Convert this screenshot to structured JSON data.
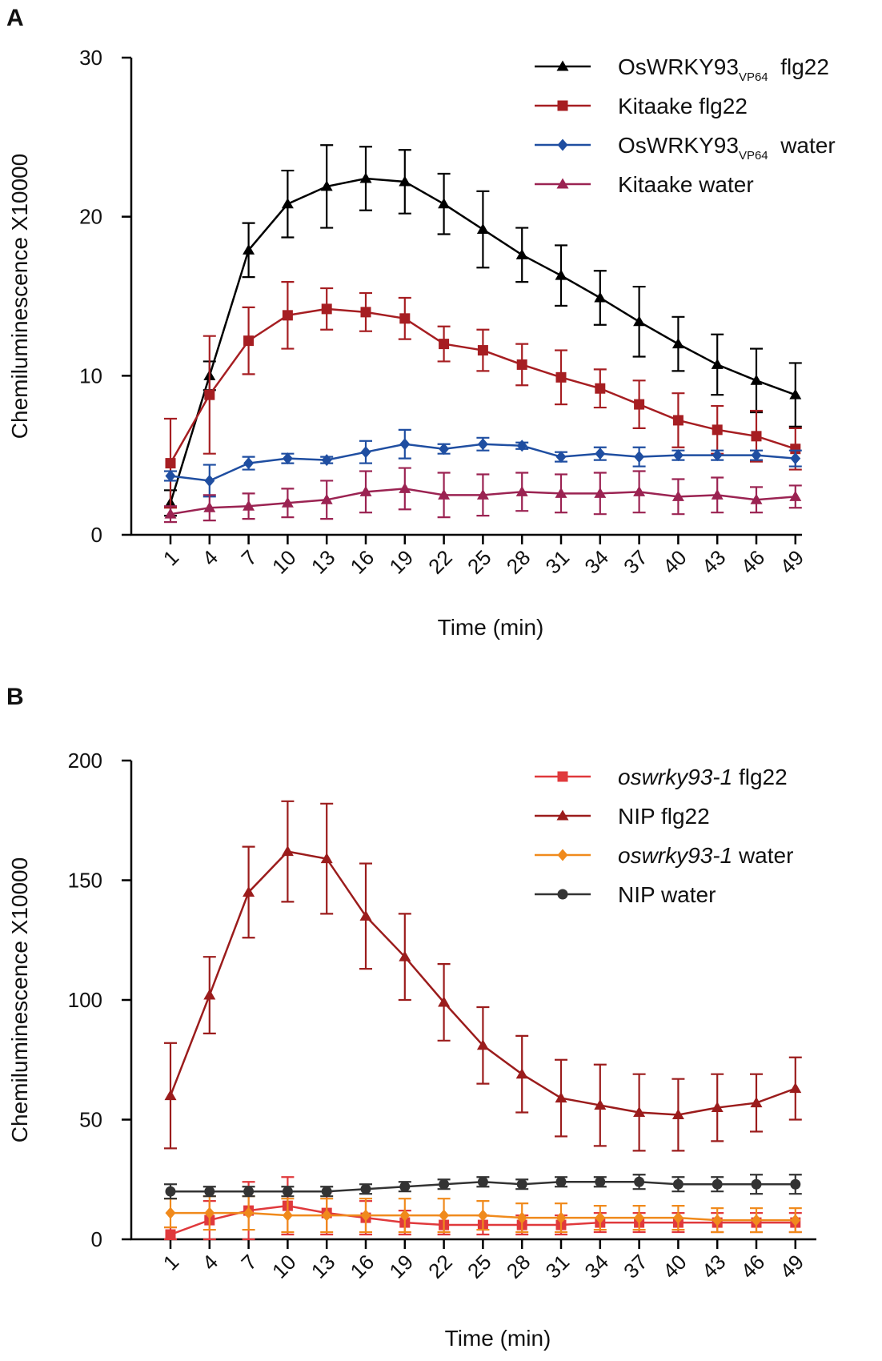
{
  "chart_data": [
    {
      "panel": "A",
      "type": "line",
      "xlabel": "Time (min)",
      "ylabel": "Chemiluminescence X10000",
      "ylim": [
        0,
        30
      ],
      "yticks": [
        0,
        10,
        20,
        30
      ],
      "x": [
        1,
        4,
        7,
        10,
        13,
        16,
        19,
        22,
        25,
        28,
        31,
        34,
        37,
        40,
        43,
        46,
        49
      ],
      "legend_position": "top-right",
      "series": [
        {
          "name": "OsWRKY93",
          "name_subscript": "VP64",
          "name_suffix": "flg22",
          "color": "#000000",
          "marker": "triangle",
          "values": [
            2.0,
            10.0,
            17.9,
            20.8,
            21.9,
            22.4,
            22.2,
            20.8,
            19.2,
            17.6,
            16.3,
            14.9,
            13.4,
            12.0,
            10.7,
            9.7,
            8.8
          ],
          "errors": [
            0.8,
            0.9,
            1.7,
            2.1,
            2.6,
            2.0,
            2.0,
            1.9,
            2.4,
            1.7,
            1.9,
            1.7,
            2.2,
            1.7,
            1.9,
            2.0,
            2.0
          ]
        },
        {
          "name": "Kitaake flg22",
          "color": "#a61e22",
          "marker": "square",
          "values": [
            4.5,
            8.8,
            12.2,
            13.8,
            14.2,
            14.0,
            13.6,
            12.0,
            11.6,
            10.7,
            9.9,
            9.2,
            8.2,
            7.2,
            6.6,
            6.2,
            5.4
          ],
          "errors": [
            2.8,
            3.7,
            2.1,
            2.1,
            1.3,
            1.2,
            1.3,
            1.1,
            1.3,
            1.3,
            1.7,
            1.2,
            1.5,
            1.7,
            1.5,
            1.6,
            1.3
          ]
        },
        {
          "name": "OsWRKY93",
          "name_subscript": "VP64",
          "name_suffix": "water",
          "color": "#1f4ea1",
          "marker": "diamond",
          "values": [
            3.7,
            3.4,
            4.5,
            4.8,
            4.7,
            5.2,
            5.7,
            5.4,
            5.7,
            5.6,
            4.9,
            5.1,
            4.9,
            5.0,
            5.0,
            5.0,
            4.8
          ],
          "errors": [
            0.3,
            1.0,
            0.4,
            0.3,
            0.2,
            0.7,
            0.9,
            0.3,
            0.4,
            0.2,
            0.3,
            0.4,
            0.6,
            0.3,
            0.3,
            0.3,
            0.5
          ]
        },
        {
          "name": "Kitaake water",
          "color": "#9b2352",
          "marker": "triangle",
          "values": [
            1.3,
            1.7,
            1.8,
            2.0,
            2.2,
            2.7,
            2.9,
            2.5,
            2.5,
            2.7,
            2.6,
            2.6,
            2.7,
            2.4,
            2.5,
            2.2,
            2.4
          ],
          "errors": [
            0.5,
            0.8,
            0.8,
            0.9,
            1.2,
            1.3,
            1.3,
            1.4,
            1.3,
            1.2,
            1.2,
            1.3,
            1.3,
            1.1,
            1.1,
            0.8,
            0.7
          ]
        }
      ]
    },
    {
      "panel": "B",
      "type": "line",
      "xlabel": "Time (min)",
      "ylabel": "Chemiluminescence X10000",
      "ylim": [
        0,
        200
      ],
      "yticks": [
        0,
        50,
        100,
        150,
        200
      ],
      "x": [
        1,
        4,
        7,
        10,
        13,
        16,
        19,
        22,
        25,
        28,
        31,
        34,
        37,
        40,
        43,
        46,
        49
      ],
      "legend_position": "top-right",
      "series": [
        {
          "name": "oswrky93-1",
          "name_italic": true,
          "name_suffix": "flg22",
          "color": "#e0393c",
          "marker": "square",
          "values": [
            2,
            8,
            12,
            14,
            11,
            9,
            7,
            6,
            6,
            6,
            6,
            7,
            7,
            7,
            7,
            7,
            7
          ],
          "errors": [
            3,
            8,
            12,
            12,
            9,
            7,
            5,
            4,
            4,
            4,
            4,
            4,
            4,
            4,
            4,
            4,
            4
          ]
        },
        {
          "name": "NIP flg22",
          "color": "#9b1c1c",
          "marker": "triangle",
          "values": [
            60,
            102,
            145,
            162,
            159,
            135,
            118,
            99,
            81,
            69,
            59,
            56,
            53,
            52,
            55,
            57,
            63
          ],
          "errors": [
            22,
            16,
            19,
            21,
            23,
            22,
            18,
            16,
            16,
            16,
            16,
            17,
            16,
            15,
            14,
            12,
            13
          ]
        },
        {
          "name": "oswrky93-1",
          "name_italic": true,
          "name_suffix": "water",
          "color": "#f08a1c",
          "marker": "diamond",
          "values": [
            11,
            11,
            11,
            10,
            10,
            10,
            10,
            10,
            10,
            9,
            9,
            9,
            9,
            9,
            8,
            8,
            8
          ],
          "errors": [
            6,
            7,
            7,
            7,
            7,
            7,
            7,
            7,
            6,
            6,
            6,
            5,
            5,
            5,
            5,
            5,
            5
          ]
        },
        {
          "name": "NIP water",
          "color": "#333333",
          "marker": "circle",
          "values": [
            20,
            20,
            20,
            20,
            20,
            21,
            22,
            23,
            24,
            23,
            24,
            24,
            24,
            23,
            23,
            23,
            23
          ],
          "errors": [
            3,
            2,
            2,
            2,
            2,
            2,
            2,
            2,
            2,
            2,
            2,
            2,
            3,
            3,
            3,
            4,
            4
          ]
        }
      ]
    }
  ]
}
